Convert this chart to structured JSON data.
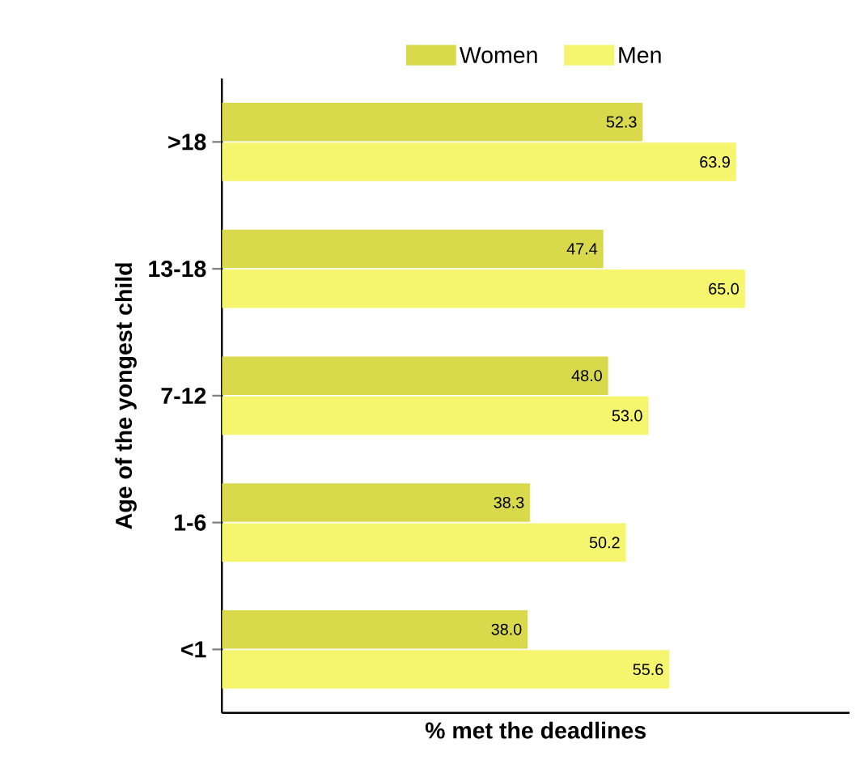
{
  "chart_data": {
    "type": "bar",
    "orientation": "horizontal",
    "xlabel": "% met the deadlines",
    "ylabel": "Age of the yongest child",
    "categories": [
      ">18",
      "13-18",
      "7-12",
      "1-6",
      "<1"
    ],
    "series": [
      {
        "name": "Women",
        "color": "#d9d94c",
        "values": [
          52.3,
          47.4,
          48.0,
          38.3,
          38.0
        ],
        "value_labels": [
          "52.3",
          "47.4",
          "48.0",
          "38.3",
          "38.0"
        ]
      },
      {
        "name": "Men",
        "color": "#f5f56e",
        "values": [
          63.9,
          65.0,
          53.0,
          50.2,
          55.6
        ],
        "value_labels": [
          "63.9",
          "65.0",
          "53.0",
          "50.2",
          "55.6"
        ]
      }
    ],
    "xlim": [
      0,
      78
    ],
    "legend": "top",
    "tick_labels": "y"
  }
}
